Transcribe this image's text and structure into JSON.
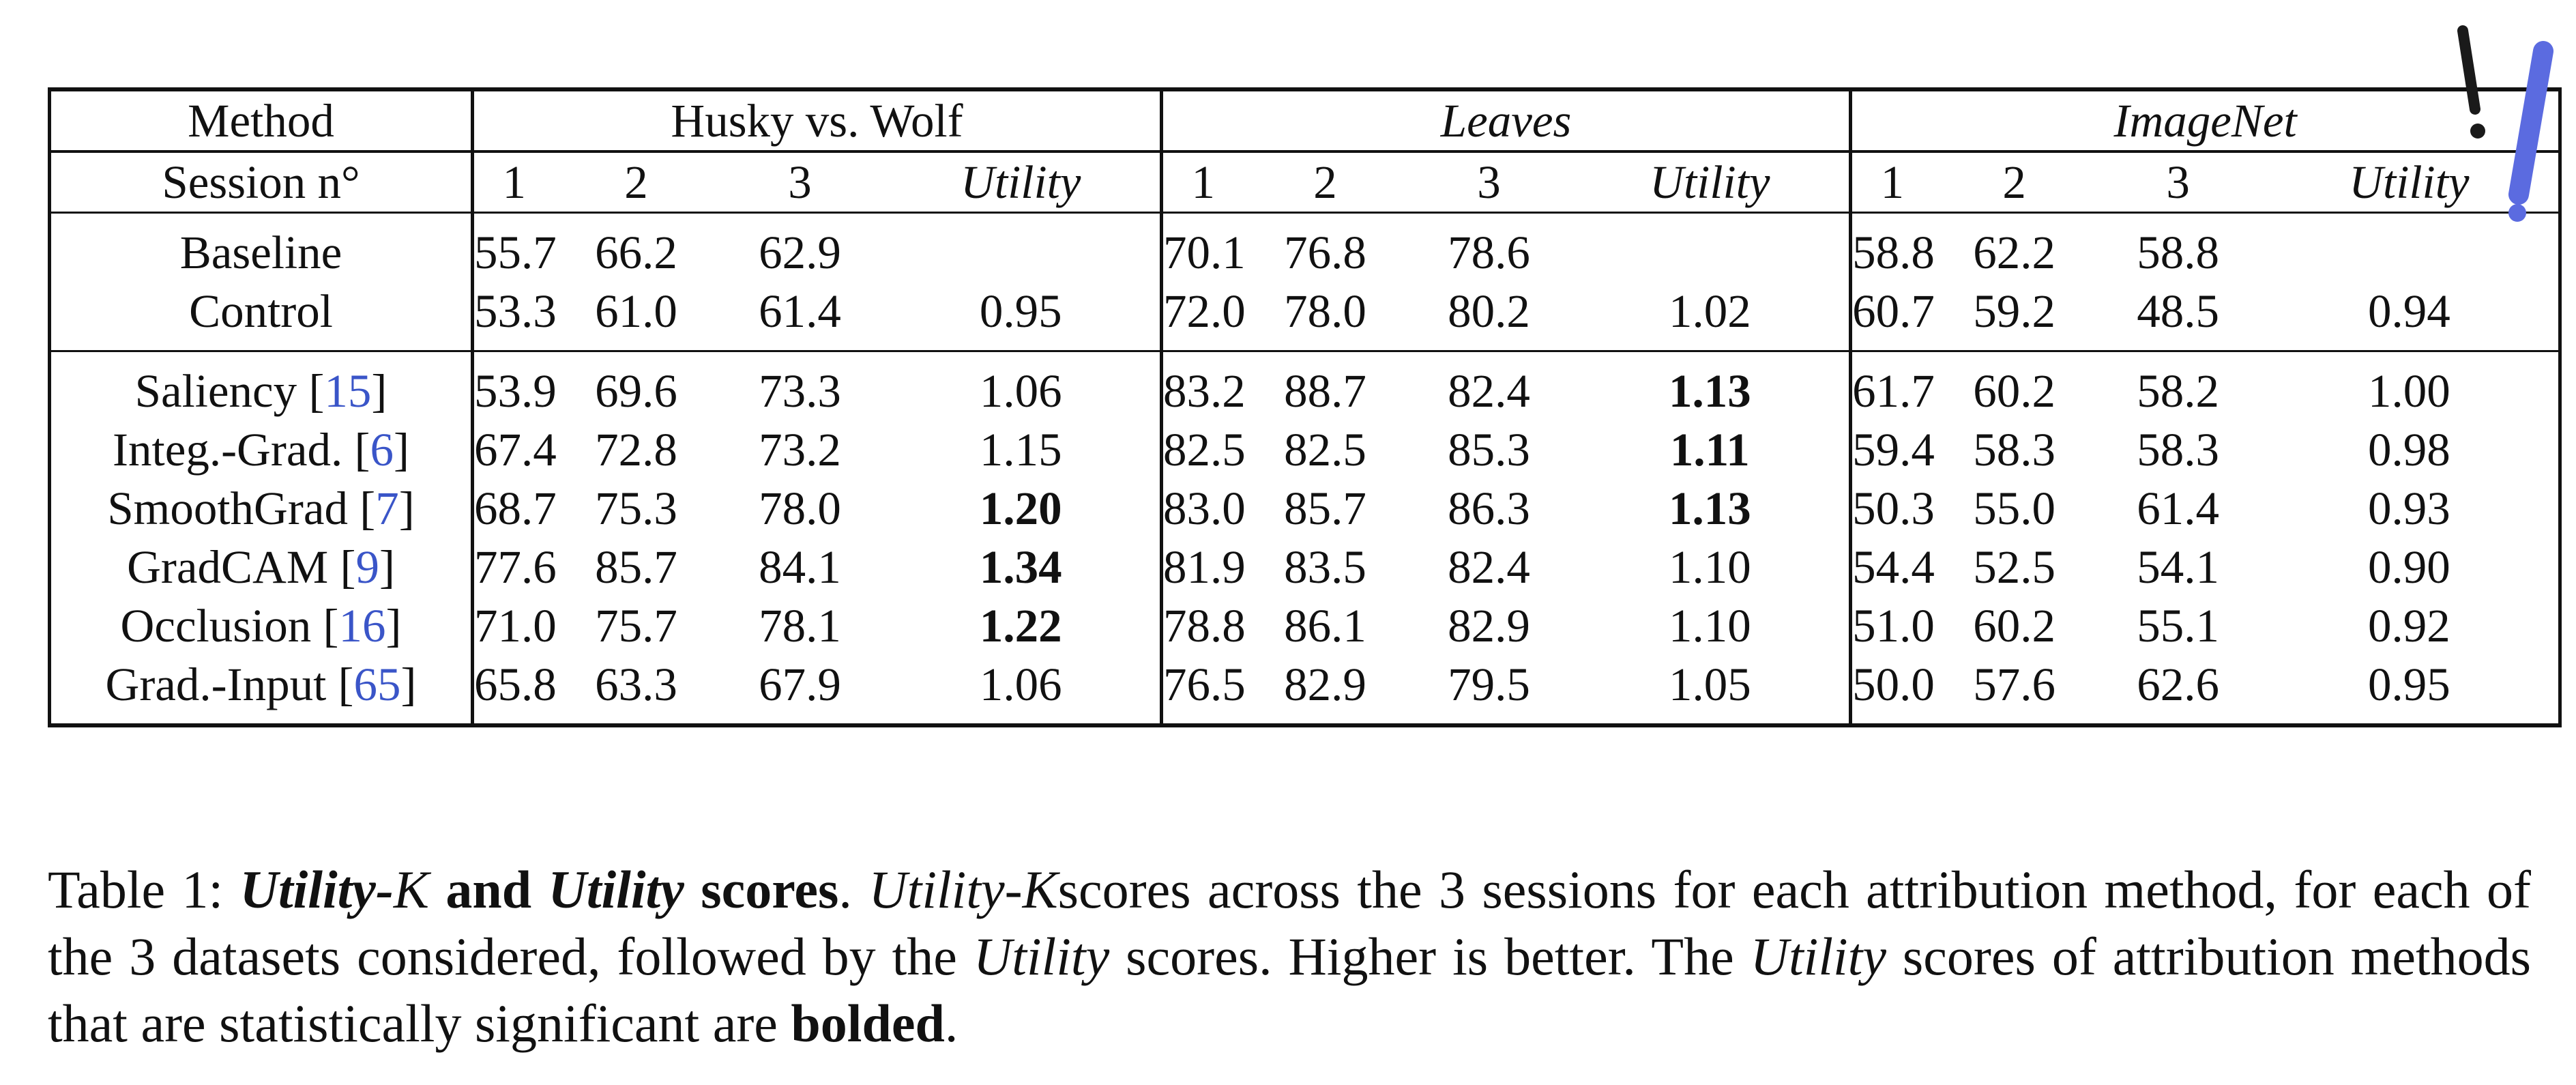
{
  "table": {
    "method_header": "Method",
    "session_header": "Session n°",
    "datasets": [
      {
        "name": "Husky vs. Wolf",
        "italic": false
      },
      {
        "name": "Leaves",
        "italic": true
      },
      {
        "name": "ImageNet",
        "italic": true
      }
    ],
    "session_labels": [
      "1",
      "2",
      "3",
      "Utility"
    ],
    "groups": [
      [
        {
          "method": "Baseline",
          "cite": "",
          "husky": [
            "55.7",
            "66.2",
            "62.9",
            ""
          ],
          "leaves": [
            "70.1",
            "76.8",
            "78.6",
            ""
          ],
          "imagenet": [
            "58.8",
            "62.2",
            "58.8",
            ""
          ],
          "bold": [
            false,
            false,
            false
          ]
        },
        {
          "method": "Control",
          "cite": "",
          "husky": [
            "53.3",
            "61.0",
            "61.4",
            "0.95"
          ],
          "leaves": [
            "72.0",
            "78.0",
            "80.2",
            "1.02"
          ],
          "imagenet": [
            "60.7",
            "59.2",
            "48.5",
            "0.94"
          ],
          "bold": [
            false,
            false,
            false
          ]
        }
      ],
      [
        {
          "method": "Saliency ",
          "cite": "15",
          "husky": [
            "53.9",
            "69.6",
            "73.3",
            "1.06"
          ],
          "leaves": [
            "83.2",
            "88.7",
            "82.4",
            "1.13"
          ],
          "imagenet": [
            "61.7",
            "60.2",
            "58.2",
            "1.00"
          ],
          "bold": [
            false,
            true,
            false
          ]
        },
        {
          "method": "Integ.-Grad. ",
          "cite": "6",
          "husky": [
            "67.4",
            "72.8",
            "73.2",
            "1.15"
          ],
          "leaves": [
            "82.5",
            "82.5",
            "85.3",
            "1.11"
          ],
          "imagenet": [
            "59.4",
            "58.3",
            "58.3",
            "0.98"
          ],
          "bold": [
            false,
            true,
            false
          ]
        },
        {
          "method": "SmoothGrad ",
          "cite": "7",
          "husky": [
            "68.7",
            "75.3",
            "78.0",
            "1.20"
          ],
          "leaves": [
            "83.0",
            "85.7",
            "86.3",
            "1.13"
          ],
          "imagenet": [
            "50.3",
            "55.0",
            "61.4",
            "0.93"
          ],
          "bold": [
            true,
            true,
            false
          ]
        },
        {
          "method": "GradCAM ",
          "cite": "9",
          "husky": [
            "77.6",
            "85.7",
            "84.1",
            "1.34"
          ],
          "leaves": [
            "81.9",
            "83.5",
            "82.4",
            "1.10"
          ],
          "imagenet": [
            "54.4",
            "52.5",
            "54.1",
            "0.90"
          ],
          "bold": [
            true,
            false,
            false
          ]
        },
        {
          "method": "Occlusion ",
          "cite": "16",
          "husky": [
            "71.0",
            "75.7",
            "78.1",
            "1.22"
          ],
          "leaves": [
            "78.8",
            "86.1",
            "82.9",
            "1.10"
          ],
          "imagenet": [
            "51.0",
            "60.2",
            "55.1",
            "0.92"
          ],
          "bold": [
            true,
            false,
            false
          ]
        },
        {
          "method": "Grad.-Input ",
          "cite": "65",
          "husky": [
            "65.8",
            "63.3",
            "67.9",
            "1.06"
          ],
          "leaves": [
            "76.5",
            "82.9",
            "79.5",
            "1.05"
          ],
          "imagenet": [
            "50.0",
            "57.6",
            "62.6",
            "0.95"
          ],
          "bold": [
            false,
            false,
            false
          ]
        }
      ]
    ]
  },
  "caption": {
    "label": "Table 1: ",
    "title_utility_k_a": "Utility-",
    "title_k": "K",
    "title_and": " and ",
    "title_utility": "Utility",
    "title_scores": " scores",
    "period1": ". ",
    "body_utility_k_a": "Utility-",
    "body_k": "K",
    "body_1": "scores across the 3 sessions for each attribution method, for each of the 3 datasets considered, followed by the ",
    "body_utility_1": "Utility",
    "body_2": " scores. Higher is better. The ",
    "body_utility_2": "Utility",
    "body_3": " scores of attribution methods that are statistically significant are ",
    "body_bolded": "bolded",
    "body_end": "."
  },
  "logo": {
    "accent": "#5b6be0",
    "dark": "#1a1a1a"
  },
  "colors": {
    "citation": "#3a55c8"
  }
}
